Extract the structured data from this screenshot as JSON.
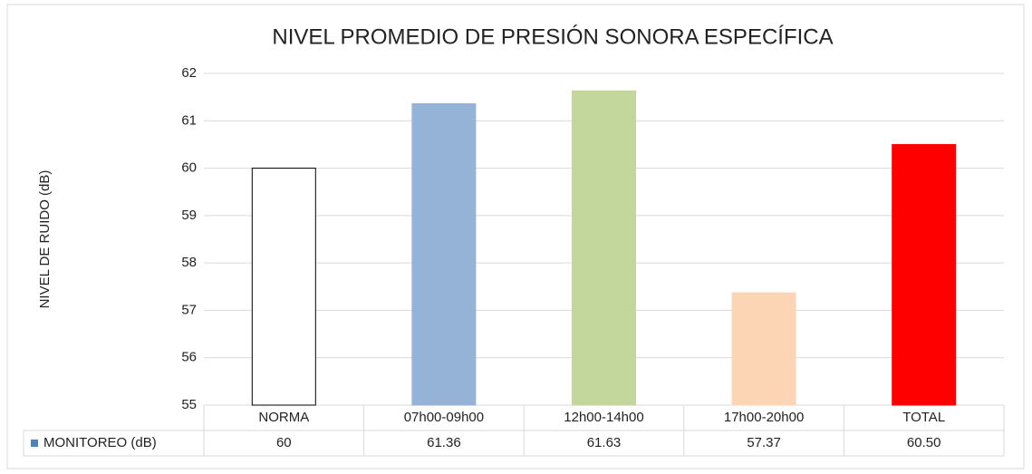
{
  "chart_data": {
    "type": "bar",
    "title": "NIVEL PROMEDIO  DE PRESIÓN SONORA ESPECÍFICA",
    "y_label": "NIVEL DE RUIDO (dB)",
    "categories": [
      "NORMA",
      "07h00-09h00",
      "12h00-14h00",
      "17h00-20h00",
      "TOTAL"
    ],
    "series": [
      {
        "name": "MONITOREO (dB)",
        "color": "#4f81bd",
        "values": [
          60,
          61.36,
          61.63,
          57.37,
          60.5
        ],
        "value_labels": [
          "60",
          "61.36",
          "61.63",
          "57.37",
          "60.50"
        ],
        "colors": [
          "#ffffff",
          "#95b3d7",
          "#c3d69b",
          "#fcd5b5",
          "#ff0000"
        ],
        "edgecolors": [
          "#000000",
          "#95b3d7",
          "#c3d69b",
          "#fcd5b5",
          "#ff0000"
        ]
      }
    ],
    "ylim": [
      55,
      62
    ],
    "yticks": [
      55,
      56,
      57,
      58,
      59,
      60,
      61,
      62
    ],
    "grid": true
  }
}
